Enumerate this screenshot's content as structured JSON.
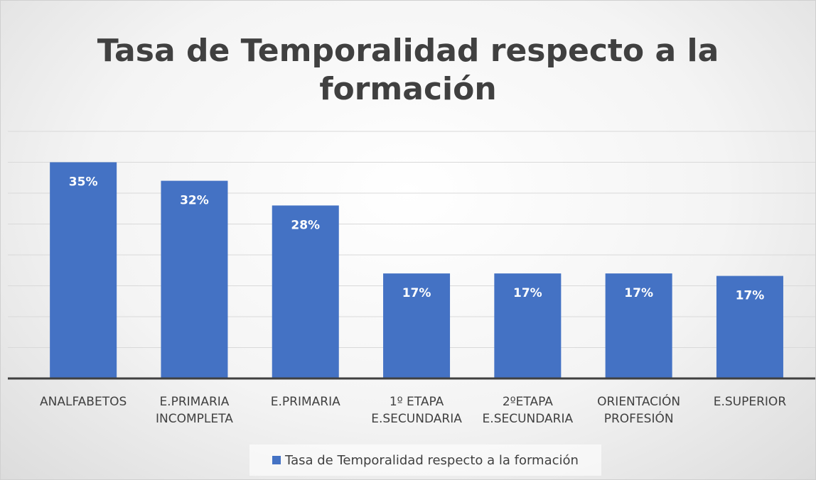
{
  "chart_data": {
    "type": "bar",
    "title": "Tasa de Temporalidad respecto a la\nformación",
    "categories": [
      "ANALFABETOS",
      "E.PRIMARIA\nINCOMPLETA",
      "E.PRIMARIA",
      "1º ETAPA\nE.SECUNDARIA",
      "2ºETAPA\nE.SECUNDARIA",
      "ORIENTACIÓN\nPROFESIÓN",
      "E.SUPERIOR"
    ],
    "series": [
      {
        "name": "Tasa de Temporalidad respecto a la formación",
        "color": "#4472c4",
        "values": [
          35,
          32,
          28,
          17,
          17,
          17,
          16.6
        ],
        "value_labels": [
          "35%",
          "32%",
          "28%",
          "17%",
          "17%",
          "17%",
          "17%"
        ]
      }
    ],
    "ylim": [
      0,
      40
    ],
    "yticks": [
      0,
      5,
      10,
      15,
      20,
      25,
      30,
      35,
      40
    ],
    "grid": true,
    "legend": "bottom"
  }
}
